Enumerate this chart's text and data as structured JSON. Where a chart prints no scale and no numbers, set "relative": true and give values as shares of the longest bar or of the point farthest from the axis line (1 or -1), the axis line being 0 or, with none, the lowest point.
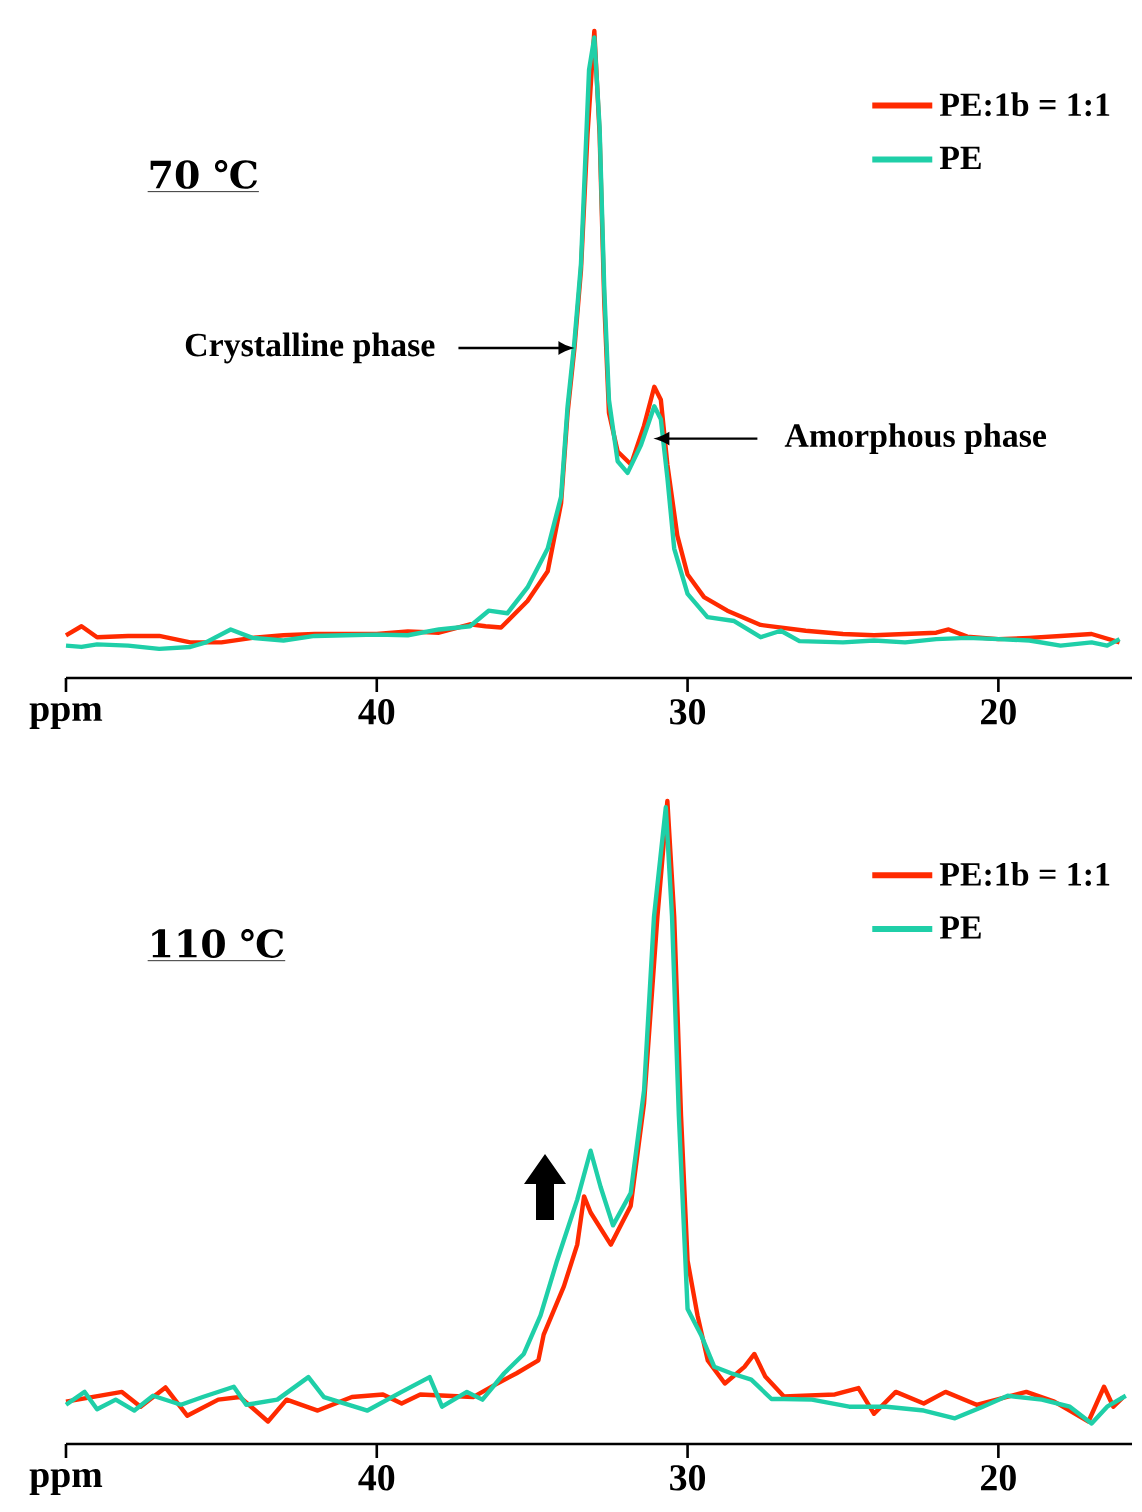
{
  "chart_data": [
    {
      "type": "line",
      "title": "70 ℃",
      "xlabel": "ppm",
      "xlim": [
        50,
        15.7
      ],
      "xticks": [
        {
          "value": 50,
          "label": null
        },
        40,
        30,
        20
      ],
      "relative": true,
      "legend": "top right",
      "annotations": [
        {
          "text": "Crystalline phase",
          "x": 33.64,
          "y": 0.51
        },
        {
          "text": "Amorphous phase",
          "x": 31.1,
          "y": 0.37
        }
      ],
      "series": [
        {
          "name": "PE:1b = 1:1",
          "color": "#ff2a00",
          "x": [
            50,
            49.5,
            49,
            48,
            47,
            46,
            45,
            44,
            43,
            42,
            41,
            40,
            39,
            38,
            37,
            36.5,
            36.0,
            35.15,
            34.5,
            34.07,
            33.86,
            33.64,
            33.43,
            33.22,
            33.0,
            32.83,
            32.68,
            32.53,
            32.25,
            31.82,
            31.4,
            31.07,
            30.86,
            30.65,
            30.33,
            30.0,
            29.47,
            28.72,
            27.65,
            26.2,
            25,
            24,
            23,
            22,
            21.6,
            21,
            20,
            19,
            18,
            17,
            16.1
          ],
          "values": [
            0.066,
            0.08,
            0.063,
            0.065,
            0.065,
            0.055,
            0.055,
            0.062,
            0.066,
            0.068,
            0.068,
            0.068,
            0.072,
            0.07,
            0.083,
            0.08,
            0.078,
            0.119,
            0.165,
            0.27,
            0.41,
            0.51,
            0.63,
            0.84,
            1.0,
            0.84,
            0.58,
            0.41,
            0.35,
            0.33,
            0.39,
            0.45,
            0.43,
            0.33,
            0.22,
            0.16,
            0.125,
            0.104,
            0.082,
            0.073,
            0.068,
            0.066,
            0.068,
            0.07,
            0.075,
            0.064,
            0.06,
            0.062,
            0.065,
            0.068,
            0.055
          ]
        },
        {
          "name": "PE",
          "color": "#1fcfa8",
          "x": [
            50,
            49.5,
            49,
            48,
            47,
            46,
            45.5,
            44.7,
            44,
            43,
            42,
            41,
            40,
            39,
            38,
            37,
            36.4,
            35.8,
            35.15,
            34.5,
            34.07,
            33.86,
            33.64,
            33.43,
            33.17,
            33.0,
            32.83,
            32.68,
            32.53,
            32.25,
            31.93,
            31.5,
            31.07,
            30.86,
            30.65,
            30.43,
            30.0,
            29.36,
            28.5,
            27.65,
            27.0,
            26.4,
            25,
            24,
            23,
            22,
            21,
            20,
            19,
            18,
            17,
            16.5,
            16.1
          ],
          "values": [
            0.05,
            0.048,
            0.052,
            0.05,
            0.045,
            0.048,
            0.055,
            0.075,
            0.062,
            0.058,
            0.065,
            0.066,
            0.067,
            0.066,
            0.075,
            0.08,
            0.104,
            0.1,
            0.14,
            0.2,
            0.28,
            0.42,
            0.52,
            0.64,
            0.94,
            0.99,
            0.85,
            0.6,
            0.43,
            0.335,
            0.317,
            0.36,
            0.42,
            0.4,
            0.31,
            0.2,
            0.13,
            0.094,
            0.088,
            0.063,
            0.073,
            0.057,
            0.055,
            0.058,
            0.055,
            0.06,
            0.062,
            0.06,
            0.058,
            0.05,
            0.055,
            0.05,
            0.06
          ]
        }
      ]
    },
    {
      "type": "line",
      "title": "110 ℃",
      "xlabel": "ppm",
      "xlim": [
        50,
        15.7
      ],
      "xticks": [
        {
          "value": 50,
          "label": null
        },
        40,
        30,
        20
      ],
      "relative": true,
      "legend": "top right",
      "series": [
        {
          "name": "PE:1b = 1:1",
          "color": "#ff2a00",
          "x": [
            50,
            48.2,
            47.6,
            46.8,
            46.1,
            45.1,
            44.4,
            43.5,
            42.9,
            41.9,
            40.8,
            39.8,
            39.2,
            38.6,
            36.9,
            36.2,
            35.5,
            34.8,
            34.63,
            33.98,
            33.55,
            33.33,
            33.12,
            32.47,
            31.83,
            31.4,
            30.97,
            30.65,
            30.43,
            30.21,
            30.0,
            29.68,
            29.35,
            28.8,
            28.17,
            27.85,
            27.5,
            26.9,
            25.26,
            24.5,
            24.0,
            23.3,
            22.4,
            21.7,
            20.7,
            19.1,
            18.2,
            17.1,
            16.6,
            16.3,
            16.0
          ],
          "values": [
            0.066,
            0.081,
            0.058,
            0.088,
            0.044,
            0.069,
            0.073,
            0.035,
            0.069,
            0.052,
            0.073,
            0.077,
            0.063,
            0.077,
            0.073,
            0.092,
            0.11,
            0.13,
            0.17,
            0.245,
            0.31,
            0.385,
            0.36,
            0.31,
            0.37,
            0.53,
            0.82,
            1.0,
            0.82,
            0.51,
            0.285,
            0.2,
            0.13,
            0.094,
            0.12,
            0.14,
            0.105,
            0.074,
            0.077,
            0.087,
            0.047,
            0.081,
            0.063,
            0.081,
            0.061,
            0.081,
            0.066,
            0.035,
            0.089,
            0.058,
            0.072
          ]
        },
        {
          "name": "PE",
          "color": "#1fcfa8",
          "x": [
            50,
            49.4,
            49,
            48.4,
            47.8,
            47.2,
            46.3,
            45.6,
            44.6,
            44.2,
            43.2,
            42.2,
            41.7,
            40.3,
            39.2,
            38.3,
            37.9,
            37.1,
            36.6,
            35.9,
            35.27,
            34.73,
            34.2,
            33.55,
            33.12,
            32.8,
            32.4,
            31.83,
            31.4,
            31.08,
            30.7,
            30.5,
            30.28,
            30.0,
            29.57,
            29.14,
            28.6,
            27.95,
            27.3,
            26.9,
            26.0,
            24.8,
            23.6,
            22.4,
            21.4,
            20.5,
            19.7,
            18.6,
            17.7,
            17.0,
            16.5,
            15.9
          ],
          "values": [
            0.061,
            0.081,
            0.054,
            0.069,
            0.052,
            0.075,
            0.061,
            0.073,
            0.089,
            0.061,
            0.069,
            0.104,
            0.073,
            0.052,
            0.081,
            0.104,
            0.058,
            0.081,
            0.069,
            0.11,
            0.14,
            0.2,
            0.285,
            0.38,
            0.456,
            0.4,
            0.34,
            0.39,
            0.55,
            0.82,
            0.99,
            0.82,
            0.51,
            0.21,
            0.17,
            0.12,
            0.11,
            0.1,
            0.07,
            0.07,
            0.069,
            0.058,
            0.058,
            0.052,
            0.04,
            0.058,
            0.075,
            0.069,
            0.058,
            0.032,
            0.058,
            0.075
          ]
        }
      ]
    }
  ]
}
